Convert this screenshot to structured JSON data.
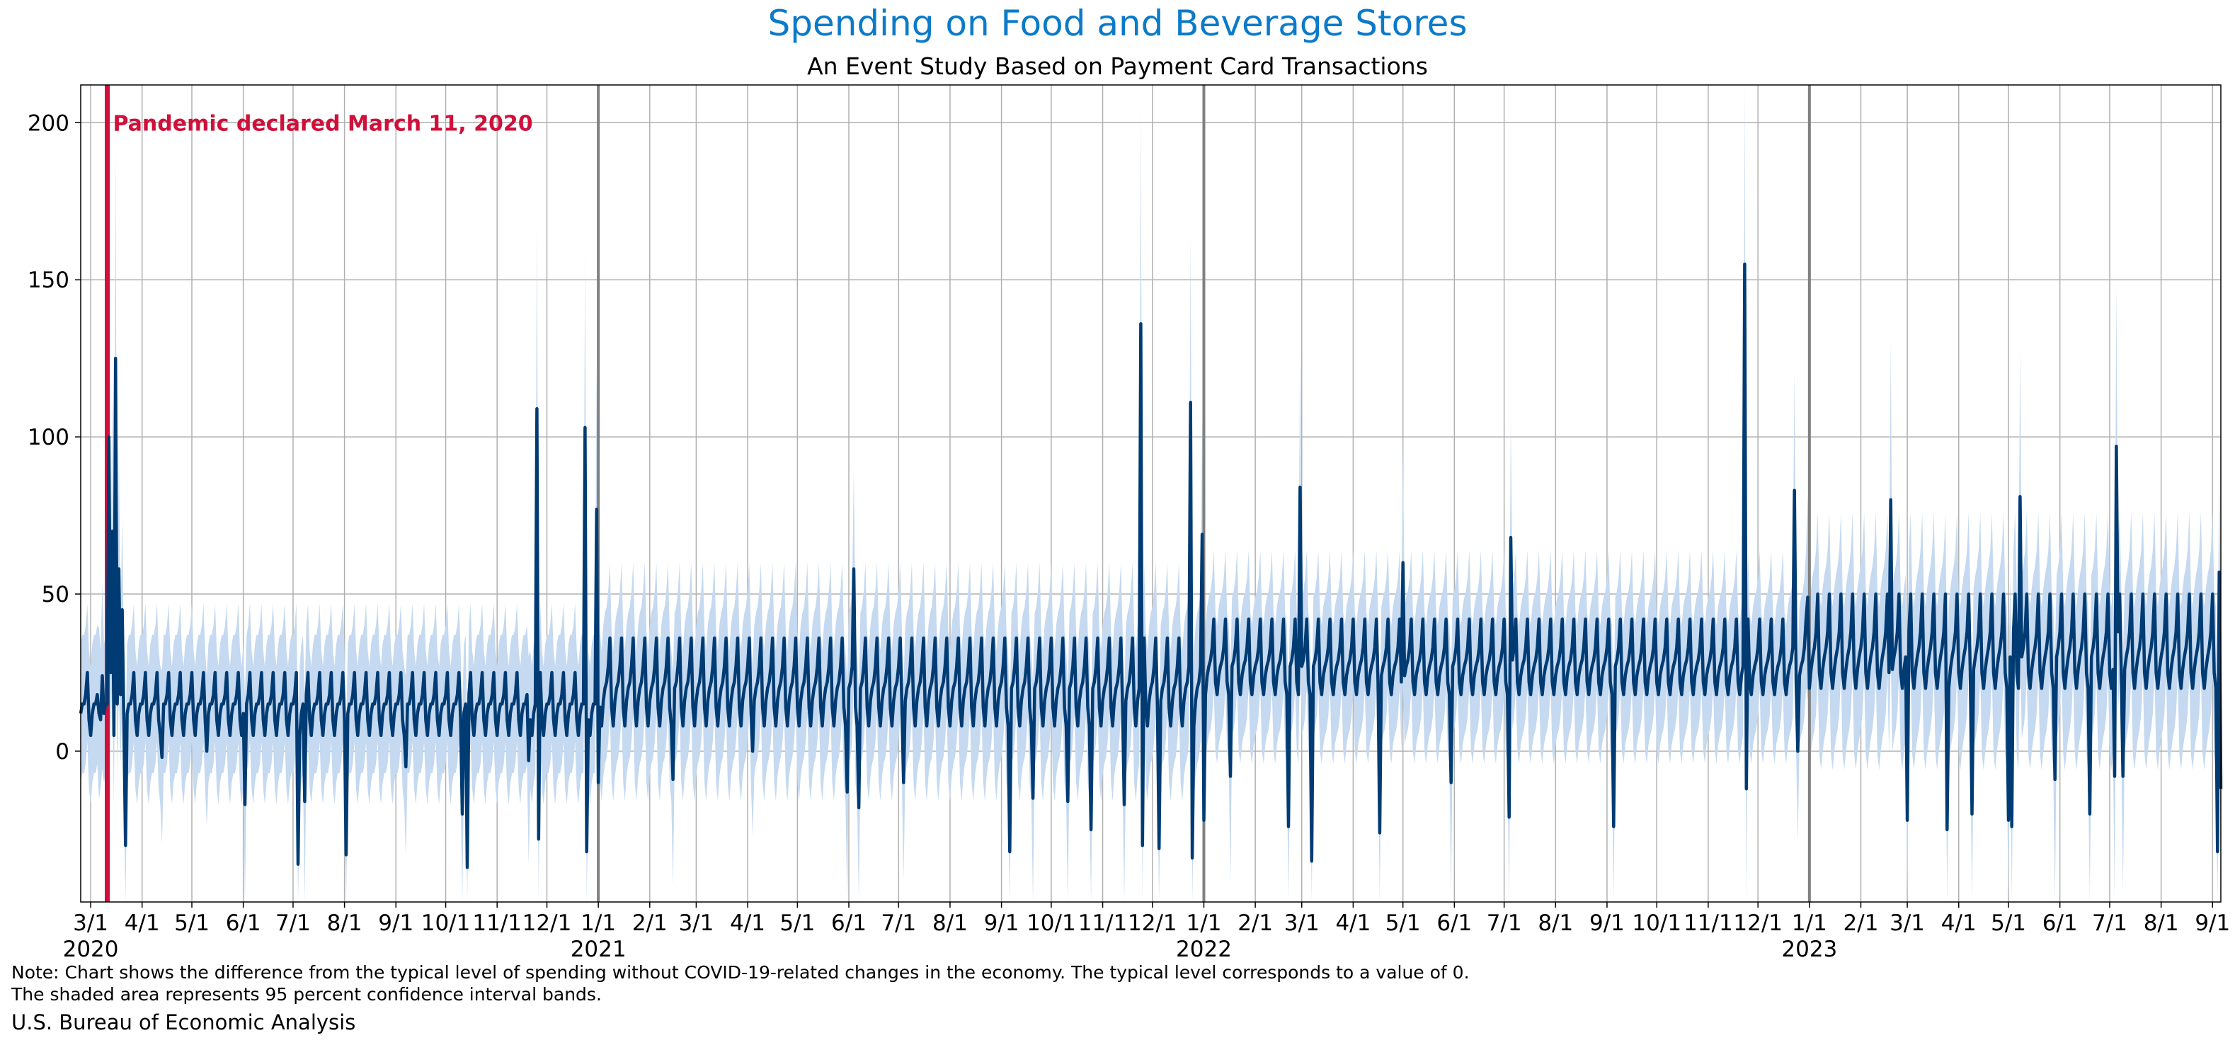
{
  "title": "Spending on Food and Beverage Stores",
  "subtitle": "An Event Study Based on Payment Card Transactions",
  "note_lines": [
    "Note: Chart shows the difference from the typical level of spending without COVID-19-related changes in the economy. The typical level corresponds to a value of 0.",
    "The shaded area represents 95 percent confidence interval bands."
  ],
  "source": "U.S. Bureau of Economic Analysis",
  "colors": {
    "title": "#0b7ac9",
    "line": "#003b73",
    "band": "#c5d9f0",
    "event": "#d0103a",
    "grid": "#b0b0b0",
    "year_line": "#808080"
  },
  "chart_data": {
    "type": "line",
    "title": "Spending on Food and Beverage Stores",
    "subtitle": "An Event Study Based on Payment Card Transactions",
    "xlabel": "",
    "ylabel": "",
    "x_range": [
      "2020-02-24",
      "2023-09-06"
    ],
    "ylim": [
      -48,
      212
    ],
    "y_ticks": [
      0,
      50,
      100,
      150,
      200
    ],
    "grid": true,
    "x_ticks": [
      {
        "date": "2020-03-01",
        "label": "3/1",
        "year": "2020"
      },
      {
        "date": "2020-04-01",
        "label": "4/1"
      },
      {
        "date": "2020-05-01",
        "label": "5/1"
      },
      {
        "date": "2020-06-01",
        "label": "6/1"
      },
      {
        "date": "2020-07-01",
        "label": "7/1"
      },
      {
        "date": "2020-08-01",
        "label": "8/1"
      },
      {
        "date": "2020-09-01",
        "label": "9/1"
      },
      {
        "date": "2020-10-01",
        "label": "10/1"
      },
      {
        "date": "2020-11-01",
        "label": "11/1"
      },
      {
        "date": "2020-12-01",
        "label": "12/1"
      },
      {
        "date": "2021-01-01",
        "label": "1/1",
        "year": "2021"
      },
      {
        "date": "2021-02-01",
        "label": "2/1"
      },
      {
        "date": "2021-03-01",
        "label": "3/1"
      },
      {
        "date": "2021-04-01",
        "label": "4/1"
      },
      {
        "date": "2021-05-01",
        "label": "5/1"
      },
      {
        "date": "2021-06-01",
        "label": "6/1"
      },
      {
        "date": "2021-07-01",
        "label": "7/1"
      },
      {
        "date": "2021-08-01",
        "label": "8/1"
      },
      {
        "date": "2021-09-01",
        "label": "9/1"
      },
      {
        "date": "2021-10-01",
        "label": "10/1"
      },
      {
        "date": "2021-11-01",
        "label": "11/1"
      },
      {
        "date": "2021-12-01",
        "label": "12/1"
      },
      {
        "date": "2022-01-01",
        "label": "1/1",
        "year": "2022"
      },
      {
        "date": "2022-02-01",
        "label": "2/1"
      },
      {
        "date": "2022-03-01",
        "label": "3/1"
      },
      {
        "date": "2022-04-01",
        "label": "4/1"
      },
      {
        "date": "2022-05-01",
        "label": "5/1"
      },
      {
        "date": "2022-06-01",
        "label": "6/1"
      },
      {
        "date": "2022-07-01",
        "label": "7/1"
      },
      {
        "date": "2022-08-01",
        "label": "8/1"
      },
      {
        "date": "2022-09-01",
        "label": "9/1"
      },
      {
        "date": "2022-10-01",
        "label": "10/1"
      },
      {
        "date": "2022-11-01",
        "label": "11/1"
      },
      {
        "date": "2022-12-01",
        "label": "12/1"
      },
      {
        "date": "2023-01-01",
        "label": "1/1",
        "year": "2023"
      },
      {
        "date": "2023-02-01",
        "label": "2/1"
      },
      {
        "date": "2023-03-01",
        "label": "3/1"
      },
      {
        "date": "2023-04-01",
        "label": "4/1"
      },
      {
        "date": "2023-05-01",
        "label": "5/1"
      },
      {
        "date": "2023-06-01",
        "label": "6/1"
      },
      {
        "date": "2023-07-01",
        "label": "7/1"
      },
      {
        "date": "2023-08-01",
        "label": "8/1"
      },
      {
        "date": "2023-09-01",
        "label": "9/1"
      }
    ],
    "year_lines": [
      "2021-01-01",
      "2022-01-01",
      "2023-01-01"
    ],
    "event": {
      "date": "2020-03-11",
      "label": "Pandemic declared March 11, 2020",
      "y": 200
    },
    "baseline": {
      "periods": [
        {
          "start": "2020-02-24",
          "end": "2020-12-31",
          "weekly": [
            5,
            12,
            15,
            15,
            18,
            25,
            10
          ],
          "band_half": 22
        },
        {
          "start": "2021-01-01",
          "end": "2021-12-31",
          "weekly": [
            8,
            16,
            20,
            22,
            27,
            36,
            14
          ],
          "band_half": 24
        },
        {
          "start": "2022-01-01",
          "end": "2022-12-31",
          "weekly": [
            18,
            24,
            27,
            29,
            33,
            42,
            22
          ],
          "band_half": 22
        },
        {
          "start": "2023-01-01",
          "end": "2023-09-06",
          "weekly": [
            20,
            26,
            30,
            33,
            38,
            50,
            25
          ],
          "band_half": 26
        }
      ]
    },
    "series": [
      {
        "type": "anomalies",
        "points": [
          {
            "date": "2020-03-06",
            "value": 12
          },
          {
            "date": "2020-03-08",
            "value": 24
          },
          {
            "date": "2020-03-12",
            "value": 100
          },
          {
            "date": "2020-03-14",
            "value": 70
          },
          {
            "date": "2020-03-16",
            "value": 125
          },
          {
            "date": "2020-03-18",
            "value": 58
          },
          {
            "date": "2020-03-20",
            "value": 45
          },
          {
            "date": "2020-03-22",
            "value": -30
          },
          {
            "date": "2020-04-13",
            "value": -2
          },
          {
            "date": "2020-05-10",
            "value": 0
          },
          {
            "date": "2020-06-02",
            "value": -17
          },
          {
            "date": "2020-07-04",
            "value": -36
          },
          {
            "date": "2020-07-08",
            "value": -16
          },
          {
            "date": "2020-08-02",
            "value": -33
          },
          {
            "date": "2020-09-07",
            "value": -5
          },
          {
            "date": "2020-10-11",
            "value": -20
          },
          {
            "date": "2020-10-14",
            "value": -37
          },
          {
            "date": "2020-11-20",
            "value": -3
          },
          {
            "date": "2020-11-25",
            "value": 109
          },
          {
            "date": "2020-11-26",
            "value": -28
          },
          {
            "date": "2020-12-24",
            "value": 103
          },
          {
            "date": "2020-12-25",
            "value": -32
          },
          {
            "date": "2020-12-31",
            "value": 77
          },
          {
            "date": "2021-01-01",
            "value": -10
          },
          {
            "date": "2021-02-15",
            "value": -9
          },
          {
            "date": "2021-04-04",
            "value": 0
          },
          {
            "date": "2021-05-31",
            "value": -13
          },
          {
            "date": "2021-06-04",
            "value": 58
          },
          {
            "date": "2021-06-07",
            "value": -18
          },
          {
            "date": "2021-07-04",
            "value": -10
          },
          {
            "date": "2021-09-06",
            "value": -32
          },
          {
            "date": "2021-09-20",
            "value": -15
          },
          {
            "date": "2021-10-11",
            "value": -16
          },
          {
            "date": "2021-10-25",
            "value": -25
          },
          {
            "date": "2021-11-14",
            "value": -17
          },
          {
            "date": "2021-11-24",
            "value": 136
          },
          {
            "date": "2021-11-25",
            "value": -30
          },
          {
            "date": "2021-12-05",
            "value": -31
          },
          {
            "date": "2021-12-24",
            "value": 111
          },
          {
            "date": "2021-12-25",
            "value": -34
          },
          {
            "date": "2021-12-31",
            "value": 69
          },
          {
            "date": "2022-01-01",
            "value": -22
          },
          {
            "date": "2022-01-17",
            "value": -8
          },
          {
            "date": "2022-02-21",
            "value": -24
          },
          {
            "date": "2022-02-28",
            "value": 84
          },
          {
            "date": "2022-03-07",
            "value": -35
          },
          {
            "date": "2022-04-17",
            "value": -26
          },
          {
            "date": "2022-05-01",
            "value": 60
          },
          {
            "date": "2022-05-30",
            "value": -10
          },
          {
            "date": "2022-07-04",
            "value": -21
          },
          {
            "date": "2022-07-05",
            "value": 68
          },
          {
            "date": "2022-09-05",
            "value": -24
          },
          {
            "date": "2022-11-23",
            "value": 155
          },
          {
            "date": "2022-11-24",
            "value": -12
          },
          {
            "date": "2022-12-23",
            "value": 83
          },
          {
            "date": "2022-12-25",
            "value": 0
          },
          {
            "date": "2022-12-31",
            "value": 49
          },
          {
            "date": "2023-02-19",
            "value": 80
          },
          {
            "date": "2023-03-01",
            "value": -22
          },
          {
            "date": "2023-03-25",
            "value": -25
          },
          {
            "date": "2023-04-09",
            "value": -20
          },
          {
            "date": "2023-05-01",
            "value": -22
          },
          {
            "date": "2023-05-03",
            "value": -24
          },
          {
            "date": "2023-05-08",
            "value": 81
          },
          {
            "date": "2023-05-29",
            "value": -9
          },
          {
            "date": "2023-06-19",
            "value": -20
          },
          {
            "date": "2023-07-04",
            "value": -8
          },
          {
            "date": "2023-07-05",
            "value": 97
          },
          {
            "date": "2023-07-09",
            "value": -8
          },
          {
            "date": "2023-09-04",
            "value": -32
          },
          {
            "date": "2023-09-05",
            "value": 57
          },
          {
            "date": "2023-09-06",
            "value": -12
          }
        ]
      }
    ]
  }
}
